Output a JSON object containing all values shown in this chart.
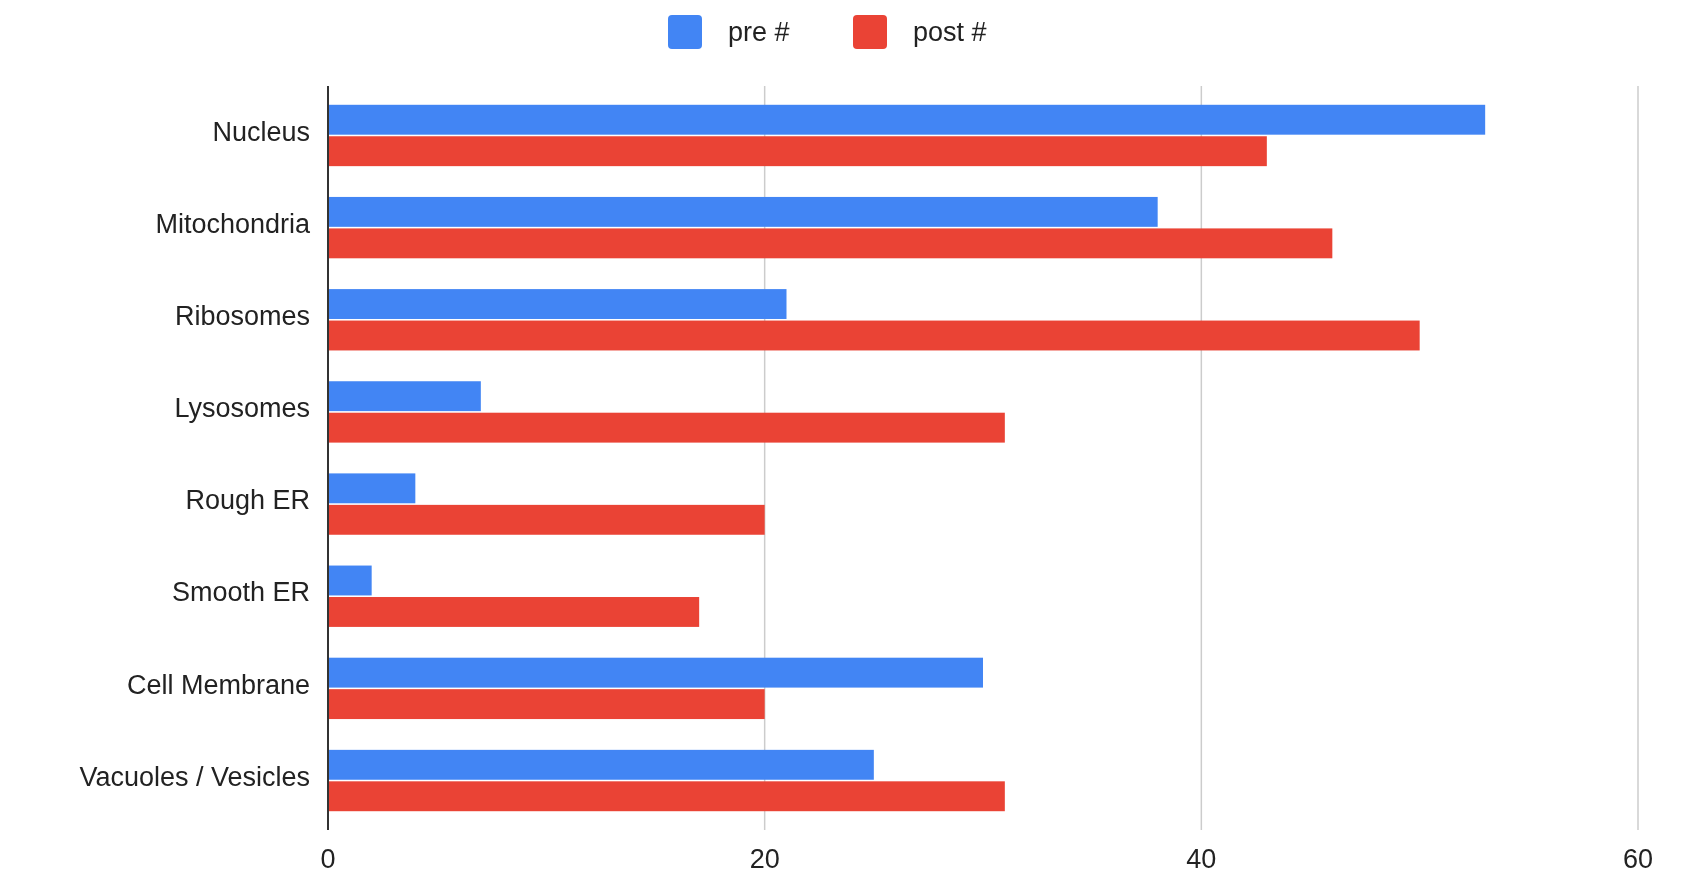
{
  "chart_data": {
    "type": "bar",
    "orientation": "horizontal",
    "categories": [
      "Nucleus",
      "Mitochondria",
      "Ribosomes",
      "Lysosomes",
      "Rough ER",
      "Smooth ER",
      "Cell Membrane",
      "Vacuoles / Vesicles"
    ],
    "series": [
      {
        "name": "pre #",
        "color": "#4285f4",
        "values": [
          53,
          38,
          21,
          7,
          4,
          2,
          30,
          25
        ]
      },
      {
        "name": "post #",
        "color": "#ea4335",
        "values": [
          43,
          46,
          50,
          31,
          20,
          17,
          20,
          31
        ]
      }
    ],
    "xlim": [
      0,
      60
    ],
    "xticks": [
      0,
      20,
      40,
      60
    ],
    "grid": "x",
    "legend": "top"
  }
}
